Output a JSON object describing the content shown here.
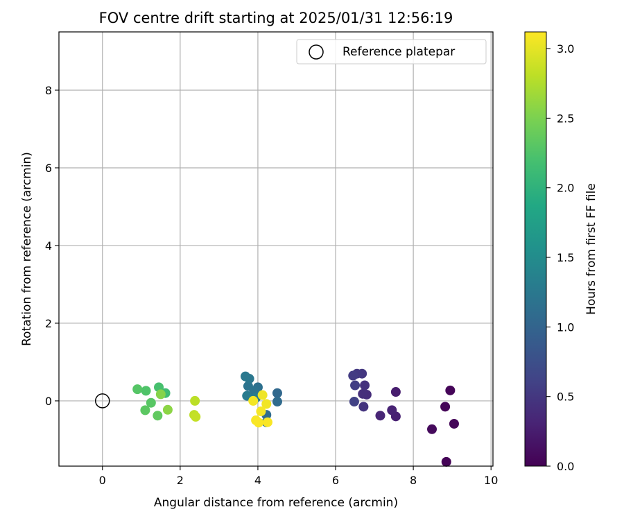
{
  "chart_data": {
    "type": "scatter",
    "title": "FOV centre drift starting at 2025/01/31 12:56:19",
    "xlabel": "Angular distance from reference (arcmin)",
    "ylabel": "Rotation from reference (arcmin)",
    "xlim": [
      -1.12,
      10.05
    ],
    "ylim": [
      -1.68,
      9.5
    ],
    "xticks": [
      0,
      2,
      4,
      6,
      8,
      10
    ],
    "yticks": [
      0,
      2,
      4,
      6,
      8
    ],
    "grid": true,
    "legend": {
      "location": "upper right",
      "entries": [
        "Reference platepar"
      ]
    },
    "reference_point": {
      "x": 0,
      "y": 0,
      "label": "Reference platepar"
    },
    "colorbar": {
      "label": "Hours from first FF file",
      "colormap": "viridis",
      "range": [
        0,
        3.12
      ],
      "ticks": [
        0.0,
        0.5,
        1.0,
        1.5,
        2.0,
        2.5,
        3.0
      ]
    },
    "points": [
      {
        "x": 8.85,
        "y": -1.57,
        "c": 0.02
      },
      {
        "x": 8.82,
        "y": -0.15,
        "c": 0.03
      },
      {
        "x": 8.95,
        "y": 0.27,
        "c": 0.04
      },
      {
        "x": 9.05,
        "y": -0.59,
        "c": 0.05
      },
      {
        "x": 8.48,
        "y": -0.73,
        "c": 0.08
      },
      {
        "x": 7.55,
        "y": 0.23,
        "c": 0.25
      },
      {
        "x": 7.55,
        "y": -0.4,
        "c": 0.28
      },
      {
        "x": 7.45,
        "y": -0.24,
        "c": 0.3
      },
      {
        "x": 7.15,
        "y": -0.38,
        "c": 0.33
      },
      {
        "x": 6.8,
        "y": 0.16,
        "c": 0.4
      },
      {
        "x": 6.7,
        "y": 0.18,
        "c": 0.42
      },
      {
        "x": 6.75,
        "y": 0.4,
        "c": 0.45
      },
      {
        "x": 6.72,
        "y": -0.15,
        "c": 0.47
      },
      {
        "x": 6.68,
        "y": 0.7,
        "c": 0.5
      },
      {
        "x": 6.55,
        "y": 0.7,
        "c": 0.52
      },
      {
        "x": 6.45,
        "y": 0.65,
        "c": 0.55
      },
      {
        "x": 6.5,
        "y": 0.4,
        "c": 0.57
      },
      {
        "x": 6.48,
        "y": -0.02,
        "c": 0.6
      },
      {
        "x": 4.5,
        "y": 0.2,
        "c": 1.05
      },
      {
        "x": 4.5,
        "y": -0.02,
        "c": 1.08
      },
      {
        "x": 4.22,
        "y": -0.36,
        "c": 1.1
      },
      {
        "x": 4.22,
        "y": -0.55,
        "c": 1.12
      },
      {
        "x": 4.0,
        "y": 0.35,
        "c": 1.15
      },
      {
        "x": 3.9,
        "y": 0.25,
        "c": 1.18
      },
      {
        "x": 3.75,
        "y": 0.38,
        "c": 1.2
      },
      {
        "x": 3.78,
        "y": 0.57,
        "c": 1.23
      },
      {
        "x": 3.68,
        "y": 0.63,
        "c": 1.25
      },
      {
        "x": 3.72,
        "y": 0.13,
        "c": 1.28
      },
      {
        "x": 3.95,
        "y": 0.08,
        "c": 1.3
      },
      {
        "x": 1.62,
        "y": 0.2,
        "c": 2.15
      },
      {
        "x": 1.45,
        "y": 0.35,
        "c": 2.2
      },
      {
        "x": 1.12,
        "y": 0.26,
        "c": 2.25
      },
      {
        "x": 0.9,
        "y": 0.3,
        "c": 2.28
      },
      {
        "x": 1.25,
        "y": -0.05,
        "c": 2.3
      },
      {
        "x": 1.1,
        "y": -0.24,
        "c": 2.32
      },
      {
        "x": 1.42,
        "y": -0.38,
        "c": 2.35
      },
      {
        "x": 1.5,
        "y": 0.17,
        "c": 2.55
      },
      {
        "x": 1.68,
        "y": -0.23,
        "c": 2.58
      },
      {
        "x": 2.38,
        "y": 0.0,
        "c": 2.8
      },
      {
        "x": 2.36,
        "y": -0.36,
        "c": 2.82
      },
      {
        "x": 2.4,
        "y": -0.41,
        "c": 2.84
      },
      {
        "x": 4.12,
        "y": 0.15,
        "c": 3.05
      },
      {
        "x": 4.22,
        "y": -0.08,
        "c": 3.06
      },
      {
        "x": 3.88,
        "y": 0.0,
        "c": 3.07
      },
      {
        "x": 4.08,
        "y": -0.27,
        "c": 3.08
      },
      {
        "x": 3.95,
        "y": -0.5,
        "c": 3.09
      },
      {
        "x": 4.02,
        "y": -0.56,
        "c": 3.1
      },
      {
        "x": 4.25,
        "y": -0.55,
        "c": 3.1
      }
    ]
  }
}
